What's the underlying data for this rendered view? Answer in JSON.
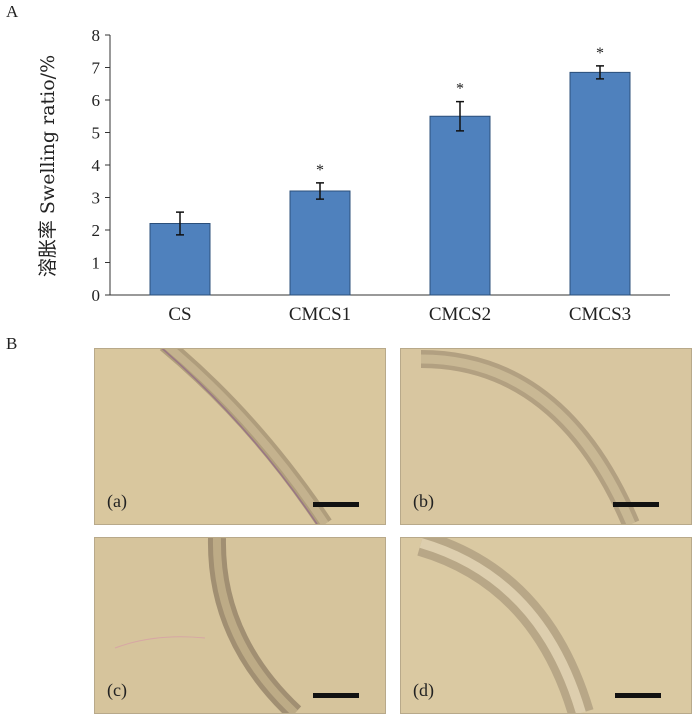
{
  "panel_a_label": "A",
  "panel_b_label": "B",
  "chart_data": {
    "type": "bar",
    "categories": [
      "CS",
      "CMCS1",
      "CMCS2",
      "CMCS3"
    ],
    "values": [
      2.2,
      3.2,
      5.5,
      6.85
    ],
    "errors": [
      0.35,
      0.25,
      0.45,
      0.2
    ],
    "significance": [
      "",
      "*",
      "*",
      "*"
    ],
    "ylabel": "溶胀率 Swelling ratio/%",
    "ylim": [
      0,
      8
    ],
    "yticks": [
      0,
      1,
      2,
      3,
      4,
      5,
      6,
      7,
      8
    ],
    "bar_color": "#4f81bd",
    "grid": false
  },
  "micrographs": [
    {
      "label": "(a)",
      "background": "#d9c79e"
    },
    {
      "label": "(b)",
      "background": "#d8c6a0"
    },
    {
      "label": "(c)",
      "background": "#d6c49c"
    },
    {
      "label": "(d)",
      "background": "#dac9a2"
    }
  ]
}
